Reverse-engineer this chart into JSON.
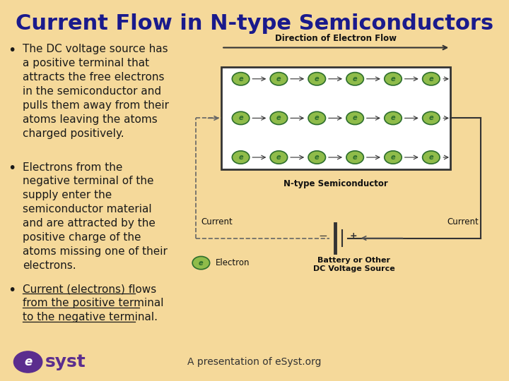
{
  "title": "Current Flow in N-type Semiconductors",
  "title_color": "#1a1a8c",
  "title_fontsize": 22,
  "bg_color": "#f5d99a",
  "bullet_points": [
    [
      "The DC voltage source has",
      "a positive terminal that",
      "attracts the free electrons",
      "in the semiconductor and",
      "pulls them away from their",
      "atoms leaving the atoms",
      "charged positively."
    ],
    [
      "Electrons from the",
      "negative terminal of the",
      "supply enter the",
      "semiconductor material",
      "and are attracted by the",
      "positive charge of the",
      "atoms missing one of their",
      "electrons."
    ],
    [
      "Current (electrons) flows",
      "from the positive terminal",
      "to the negative terminal."
    ]
  ],
  "bullet3_underline": true,
  "text_color": "#1a1a1a",
  "text_fontsize": 11,
  "diagram": {
    "electron_color": "#8fbc4a",
    "electron_border": "#2d6e2d",
    "electron_rows": 3,
    "electron_cols": 6,
    "direction_label": "Direction of Electron Flow",
    "semiconductor_label": "N-type Semiconductor",
    "current_left": "Current",
    "current_right": "Current",
    "battery_label_line1": "Battery or Other",
    "battery_label_line2": "DC Voltage Source",
    "electron_legend": "Electron"
  },
  "footer_text": "A presentation of eSyst.org",
  "footer_color": "#333333",
  "esyst_circle_color": "#5b2d8e",
  "esyst_text_color": "#5b2d8e"
}
